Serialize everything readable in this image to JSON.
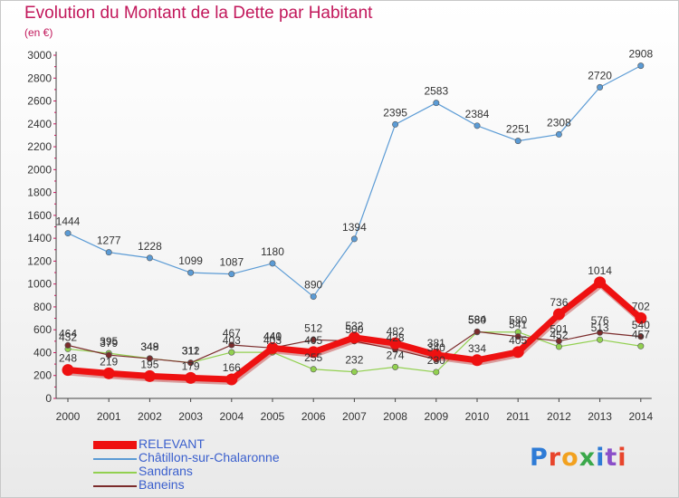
{
  "title": "Evolution du Montant de la Dette par Habitant",
  "subtitle": "(en €)",
  "logo": {
    "text": "Proxiti",
    "colors": [
      "#2e7bd6",
      "#e8452c",
      "#f2a11f",
      "#3aa84a",
      "#2e7bd6",
      "#8a4fc9",
      "#e8452c"
    ]
  },
  "chart_data": {
    "type": "line",
    "title": "Evolution du Montant de la Dette par Habitant",
    "ylabel": "(en €)",
    "xlabel": "",
    "ylim": [
      0,
      3000
    ],
    "yticks": [
      "0",
      "200",
      "400",
      "600",
      "800",
      "1000",
      "1200",
      "1400",
      "1600",
      "1800",
      "2000",
      "2200",
      "2400",
      "2600",
      "2800",
      "3000"
    ],
    "grid": false,
    "legend_position": "bottom-left",
    "x": [
      "2000",
      "2001",
      "2002",
      "2003",
      "2004",
      "2005",
      "2006",
      "2007",
      "2008",
      "2009",
      "2010",
      "2011",
      "2012",
      "2013",
      "2014"
    ],
    "series": [
      {
        "name": "RELEVANT",
        "color": "#ee1111",
        "values": [
          248,
          219,
          195,
          179,
          166,
          440,
          405,
          532,
          482,
          381,
          334,
          405,
          736,
          1014,
          702
        ],
        "labels": [
          "248",
          "219",
          "195",
          "179",
          "166",
          "440",
          "405",
          "532",
          "482",
          "381",
          "334",
          "405",
          "736",
          "1014",
          "702"
        ]
      },
      {
        "name": "Châtillon-sur-Chalaronne",
        "color": "#5b9bd5",
        "values": [
          1444,
          1277,
          1228,
          1099,
          1087,
          1180,
          890,
          1394,
          2395,
          2583,
          2384,
          2251,
          2308,
          2720,
          2908
        ],
        "labels": [
          "1444",
          "1277",
          "1228",
          "1099",
          "1087",
          "1180",
          "890",
          "1394",
          "2395",
          "2583",
          "2384",
          "2251",
          "2308",
          "2720",
          "2908"
        ]
      },
      {
        "name": "Sandrans",
        "color": "#92d050",
        "values": [
          432,
          395,
          349,
          312,
          403,
          403,
          255,
          232,
          274,
          230,
          580,
          580,
          452,
          513,
          457
        ],
        "labels": [
          "432",
          "395",
          "349",
          "312",
          "403",
          "403",
          "255",
          "232",
          "274",
          "230",
          "580",
          "580",
          "452",
          "513",
          "457"
        ]
      },
      {
        "name": "Baneins",
        "color": "#7b2c2c",
        "values": [
          464,
          379,
          348,
          311,
          467,
          441,
          512,
          500,
          428,
          340,
          584,
          541,
          501,
          576,
          540
        ],
        "labels": [
          "464",
          "379",
          "348",
          "311",
          "467",
          "441",
          "512",
          "500",
          "428",
          "340",
          "584",
          "541",
          "501",
          "576",
          "540"
        ]
      }
    ]
  }
}
